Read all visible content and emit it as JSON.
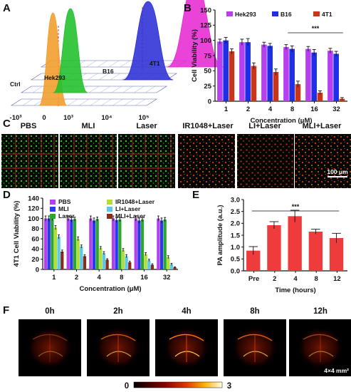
{
  "panel_labels": {
    "a": "A",
    "b": "B",
    "c": "C",
    "d": "D",
    "e": "E",
    "f": "F"
  },
  "chart_data": [
    {
      "panel": "A",
      "type": "area",
      "series": [
        {
          "name": "Ctrl",
          "color": "#f39c2a",
          "peak": 0.13
        },
        {
          "name": "Hek293",
          "color": "#1fbf2a",
          "peak": 0.72
        },
        {
          "name": "B16",
          "color": "#2b2fd6",
          "peak": 1000
        },
        {
          "name": "4T1",
          "color": "#e62ad2",
          "peak": 100000
        }
      ],
      "x_ticks": [
        "-10³",
        "0",
        "10³",
        "10⁴",
        "10⁵"
      ]
    },
    {
      "panel": "B",
      "type": "bar",
      "categories": [
        "1",
        "2",
        "4",
        "8",
        "16",
        "32"
      ],
      "series": [
        {
          "name": "Hek293",
          "color": "#b73ff0",
          "values": [
            98,
            97,
            93,
            89,
            86,
            83
          ],
          "errors": [
            4,
            5,
            4,
            4,
            4,
            4
          ]
        },
        {
          "name": "B16",
          "color": "#1f2fe6",
          "values": [
            100,
            97,
            91,
            86,
            80,
            78
          ],
          "errors": [
            5,
            6,
            4,
            5,
            5,
            4
          ]
        },
        {
          "name": "4T1",
          "color": "#c8361a",
          "values": [
            82,
            58,
            48,
            28,
            14,
            4
          ],
          "errors": [
            4,
            5,
            5,
            5,
            3,
            2
          ]
        }
      ],
      "xlabel": "Concentration (μM)",
      "ylabel": "Cell Viability (%)",
      "ylim": [
        0,
        150
      ],
      "yticks": [
        0,
        25,
        50,
        75,
        100,
        125,
        150
      ],
      "significance": "***"
    },
    {
      "panel": "D",
      "type": "bar",
      "categories": [
        "1",
        "2",
        "4",
        "8",
        "16",
        "32"
      ],
      "series": [
        {
          "name": "PBS",
          "color": "#b43fee",
          "values": [
            100,
            100,
            100,
            100,
            100,
            100
          ],
          "errors": [
            5,
            5,
            5,
            5,
            5,
            5
          ]
        },
        {
          "name": "MLI",
          "color": "#2a39f0",
          "values": [
            100,
            98,
            96,
            97,
            96,
            96
          ],
          "errors": [
            5,
            5,
            5,
            5,
            5,
            5
          ]
        },
        {
          "name": "Laser",
          "color": "#2aa52e",
          "values": [
            100,
            99,
            99,
            98,
            98,
            98
          ],
          "errors": [
            4,
            4,
            4,
            4,
            4,
            4
          ]
        },
        {
          "name": "IR1048+Laser",
          "color": "#b3dd39",
          "values": [
            82,
            60,
            42,
            38,
            30,
            24
          ],
          "errors": [
            4,
            4,
            3,
            3,
            3,
            3
          ]
        },
        {
          "name": "LI+Laser",
          "color": "#5ac9ea",
          "values": [
            64,
            45,
            32,
            26,
            18,
            10
          ],
          "errors": [
            4,
            3,
            3,
            3,
            2,
            2
          ]
        },
        {
          "name": "MLI+Laser",
          "color": "#8a2c1b",
          "values": [
            35,
            26,
            19,
            14,
            9,
            4
          ],
          "errors": [
            3,
            3,
            2,
            2,
            2,
            1
          ]
        }
      ],
      "xlabel": "Concentration (μM)",
      "ylabel": "4T1 Cell Viability (%)",
      "ylim": [
        0,
        140
      ],
      "yticks": [
        0,
        20,
        40,
        60,
        80,
        100,
        120,
        140
      ]
    },
    {
      "panel": "E",
      "type": "bar",
      "categories": [
        "Pre",
        "2",
        "4",
        "8",
        "12"
      ],
      "series": [
        {
          "color": "#ee3b3b",
          "values": [
            0.85,
            1.92,
            2.3,
            1.65,
            1.38
          ],
          "errors": [
            0.17,
            0.15,
            0.25,
            0.1,
            0.2
          ]
        }
      ],
      "xlabel": "Time (hours)",
      "ylabel": "PA amplitude (a.u.)",
      "ylim": [
        0,
        3.0
      ],
      "yticks": [
        "0.0",
        "0.5",
        "1.0",
        "1.5",
        "2.0",
        "2.5",
        "3.0"
      ],
      "significance": "***"
    }
  ],
  "panel_c": {
    "conditions": [
      "PBS",
      "MLI",
      "Laser",
      "IR1048+Laser",
      "LI+Laser",
      "MLI+Laser"
    ],
    "scale_bar": "100 μm"
  },
  "panel_f": {
    "timepoints": [
      "0h",
      "2h",
      "4h",
      "8h",
      "12h"
    ],
    "scale": "4×4 mm²",
    "colorbar_min": "0",
    "colorbar_max": "3"
  }
}
